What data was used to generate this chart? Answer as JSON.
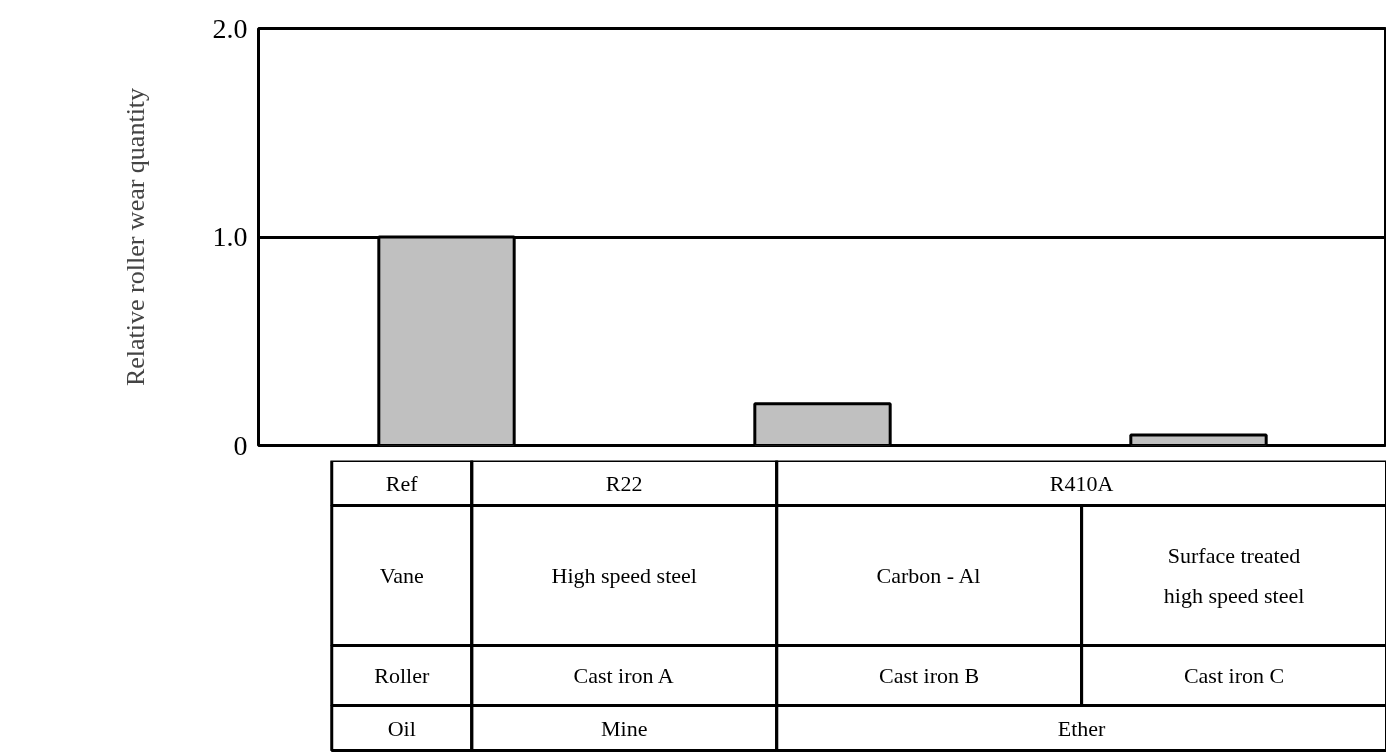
{
  "chart_data": {
    "type": "bar",
    "ylabel": "Relative roller wear quantity",
    "categories": [
      null,
      null,
      null
    ],
    "series": [
      {
        "color": "#c0c0c0",
        "values": [
          1.0,
          0.2,
          0.05
        ]
      }
    ],
    "ylim": [
      0,
      2
    ],
    "yticks": [
      0,
      {
        "value": 1,
        "label": "1.0"
      },
      {
        "value": 2,
        "label": "2.0"
      }
    ],
    "grid": "y",
    "annotations": [
      "Ref",
      "R22",
      "R410A",
      "Vane",
      "High speed steel",
      "Carbon - Al",
      "Surface treated high speed steel",
      "Roller",
      "Cast iron A",
      "Cast iron B",
      "Cast iron C",
      "Oil",
      "Mine",
      "Ether"
    ]
  }
}
